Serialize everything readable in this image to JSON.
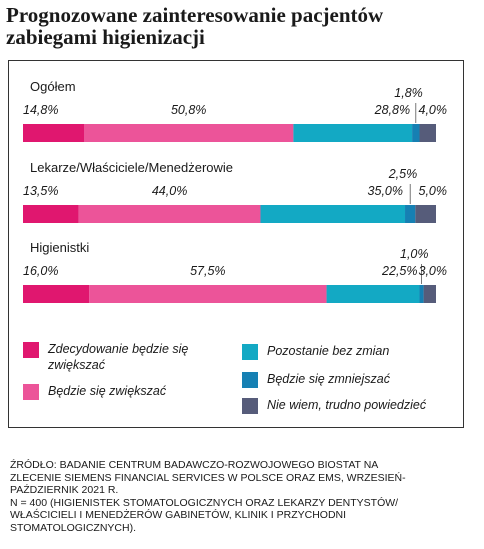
{
  "title": "Prognozowane zainteresowanie pacjentów zabiegami higienizacji",
  "chart_data": {
    "type": "bar",
    "orientation": "horizontal",
    "stacked": true,
    "value_unit": "%",
    "categories": [
      "Ogółem",
      "Lekarze/Właściciele/Menedżerowie",
      "Higienistki"
    ],
    "series": [
      {
        "name": "Zdecydowanie będzie się zwiększać",
        "color": "#e0176f",
        "values": [
          14.8,
          13.5,
          16.0
        ],
        "labels": [
          "14,8%",
          "13,5%",
          "16,0%"
        ]
      },
      {
        "name": "Będzie się zwiększać",
        "color": "#ec5499",
        "values": [
          50.8,
          44.0,
          57.5
        ],
        "labels": [
          "50,8%",
          "44,0%",
          "57,5%"
        ]
      },
      {
        "name": "Pozostanie bez zmian",
        "color": "#13a9c4",
        "values": [
          28.8,
          35.0,
          22.5
        ],
        "labels": [
          "28,8%",
          "35,0%",
          "22,5%"
        ]
      },
      {
        "name": "Będzie się zmniejszać",
        "color": "#1680b3",
        "values": [
          1.8,
          2.5,
          1.0
        ],
        "labels": [
          "1,8%",
          "2,5%",
          "1,0%"
        ]
      },
      {
        "name": "Nie wiem, trudno powiedzieć",
        "color": "#565c7a",
        "values": [
          4.0,
          5.0,
          3.0
        ],
        "labels": [
          "4,0%",
          "5,0%",
          "3,0%"
        ]
      }
    ],
    "legend_placement": "bottom",
    "grid": false
  },
  "source_lines": [
    "Źródło: Badanie Centrum Badawczo-Rozwojowego Biostat na",
    "zlecenie Siemens Financial Services w Polsce oraz EMS, wrzesień-",
    "październik 2021 r.",
    "N = 400 (higienistek stomatologicznych oraz lekarzy dentystów/",
    "właścicieli i menedżerów gabinetów, klinik i przychodni",
    "stomatologicznych)."
  ]
}
